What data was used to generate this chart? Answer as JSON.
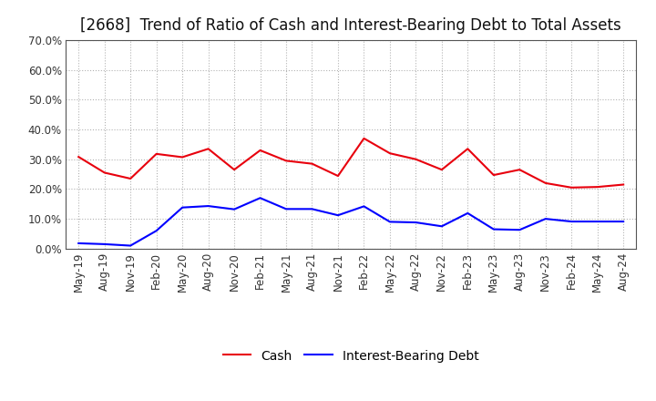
{
  "title": "[2668]  Trend of Ratio of Cash and Interest-Bearing Debt to Total Assets",
  "x_labels": [
    "May-19",
    "Aug-19",
    "Nov-19",
    "Feb-20",
    "May-20",
    "Aug-20",
    "Nov-20",
    "Feb-21",
    "May-21",
    "Aug-21",
    "Nov-21",
    "Feb-22",
    "May-22",
    "Aug-22",
    "Nov-22",
    "Feb-23",
    "May-23",
    "Aug-23",
    "Nov-23",
    "Feb-24",
    "May-24",
    "Aug-24"
  ],
  "cash": [
    0.308,
    0.255,
    0.235,
    0.318,
    0.307,
    0.335,
    0.265,
    0.33,
    0.295,
    0.285,
    0.244,
    0.37,
    0.32,
    0.3,
    0.265,
    0.335,
    0.247,
    0.265,
    0.22,
    0.205,
    0.207,
    0.215
  ],
  "debt": [
    0.018,
    0.015,
    0.01,
    0.06,
    0.138,
    0.143,
    0.132,
    0.17,
    0.133,
    0.133,
    0.112,
    0.142,
    0.09,
    0.088,
    0.075,
    0.119,
    0.065,
    0.063,
    0.1,
    0.091,
    0.091,
    0.091
  ],
  "cash_color": "#e8000d",
  "debt_color": "#0000ff",
  "ylim": [
    0,
    0.7
  ],
  "yticks": [
    0.0,
    0.1,
    0.2,
    0.3,
    0.4,
    0.5,
    0.6,
    0.7
  ],
  "ytick_labels": [
    "0.0%",
    "10.0%",
    "20.0%",
    "30.0%",
    "40.0%",
    "50.0%",
    "60.0%",
    "70.0%"
  ],
  "grid_color": "#aaaaaa",
  "bg_color": "#ffffff",
  "plot_bg_color": "#ffffff",
  "legend_cash": "Cash",
  "legend_debt": "Interest-Bearing Debt",
  "title_fontsize": 12,
  "tick_fontsize": 8.5,
  "legend_fontsize": 10,
  "spine_color": "#555555",
  "line_width": 1.5
}
